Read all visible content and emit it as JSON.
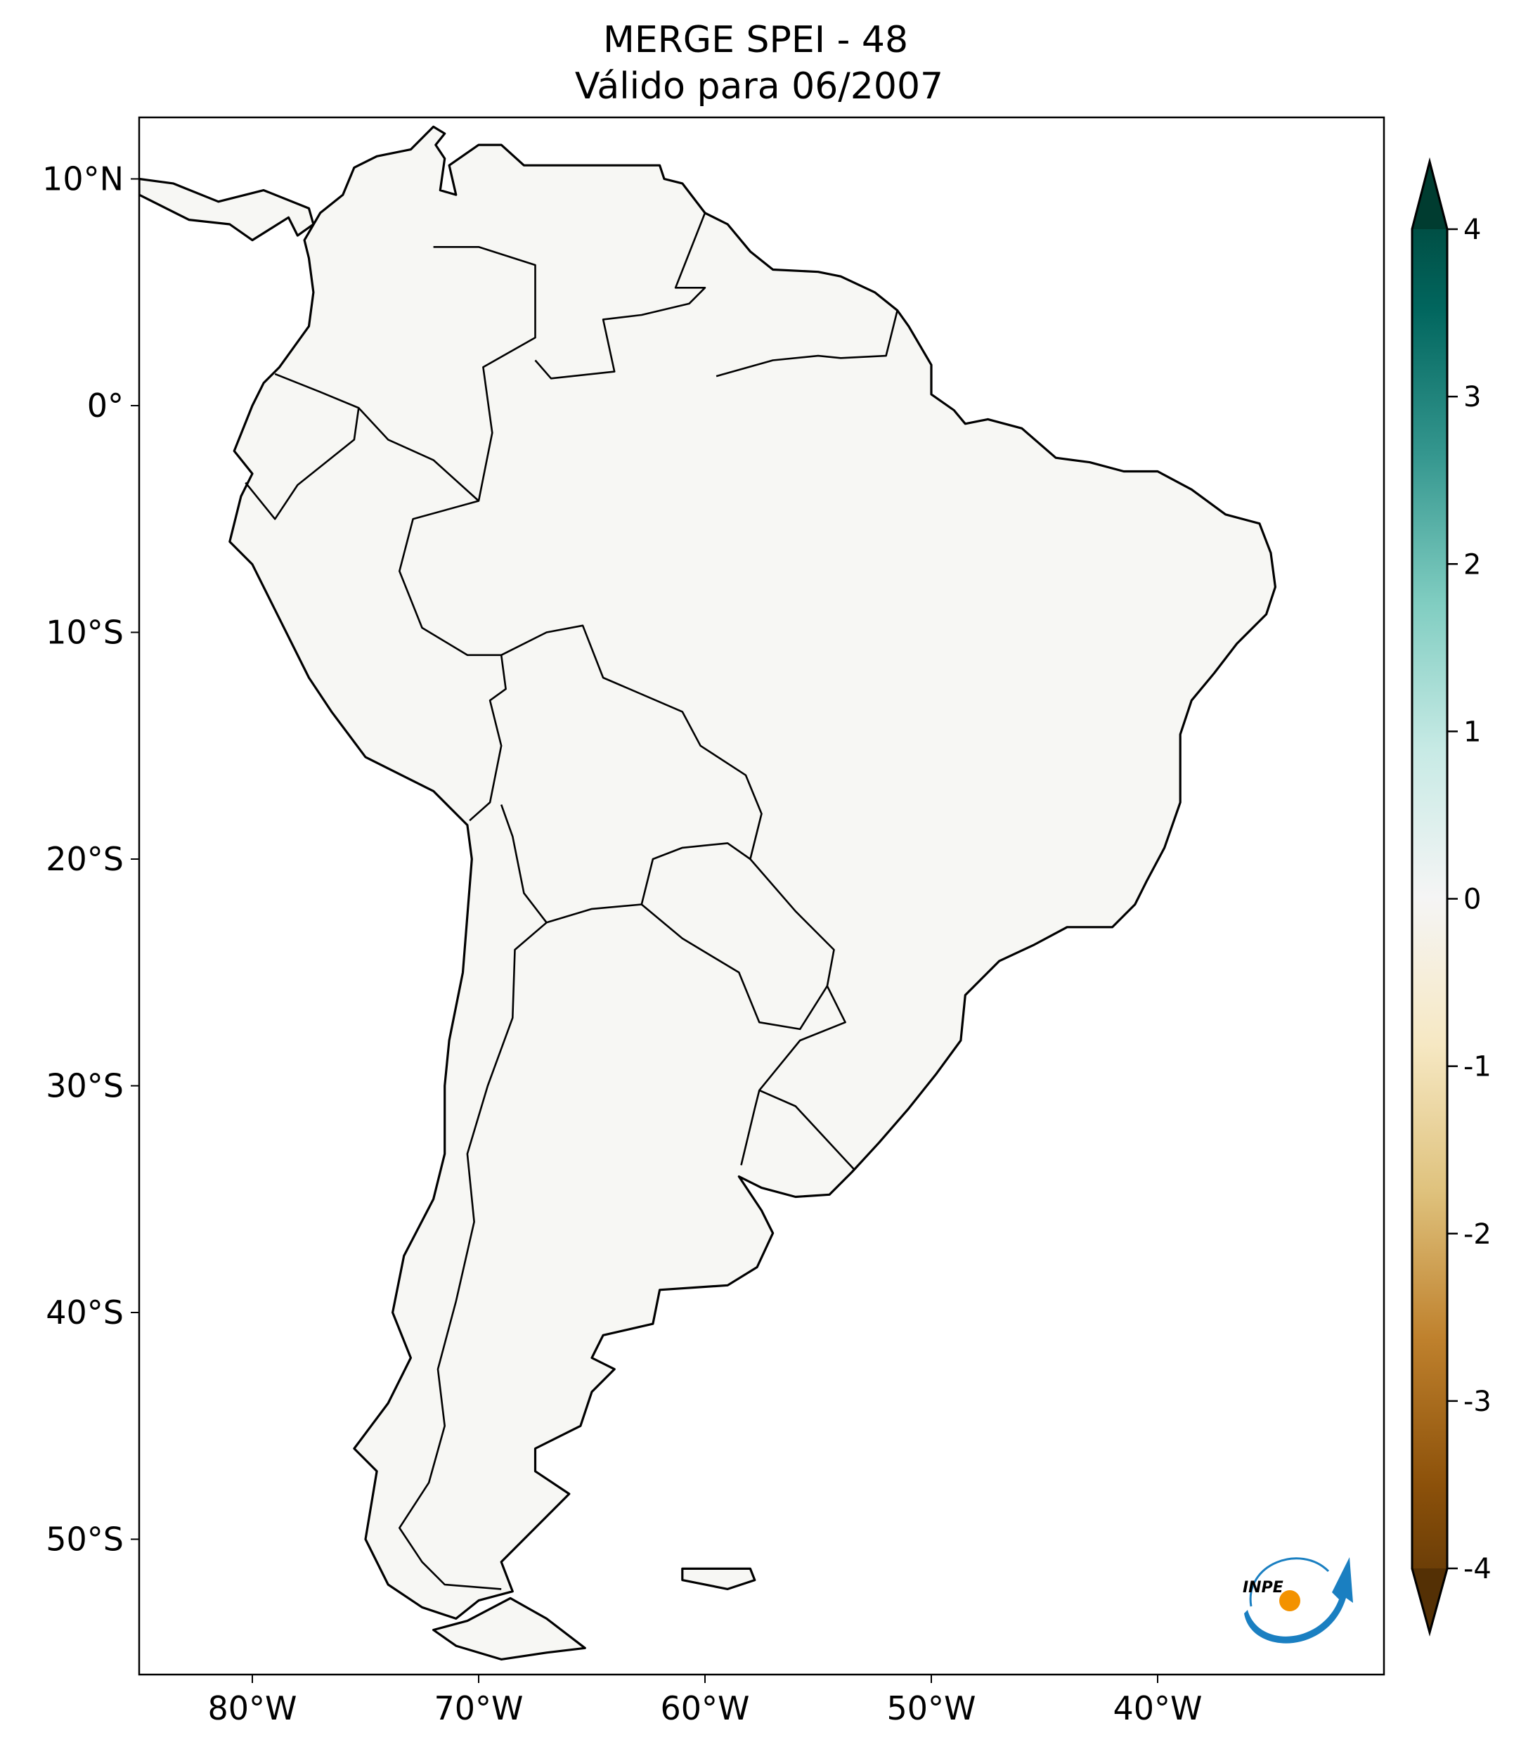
{
  "title": {
    "line1": "MERGE   SPEI - 48",
    "line2": "Válido para 06/2007"
  },
  "chart_data": {
    "type": "heatmap",
    "subtype": "geographic map of South America",
    "variable": "SPEI - 48",
    "source": "MERGE",
    "date": "06/2007",
    "lon_ticks": [
      "80°W",
      "70°W",
      "60°W",
      "50°W",
      "40°W"
    ],
    "lat_ticks": [
      "10°N",
      "0°",
      "10°S",
      "20°S",
      "30°S",
      "40°S",
      "50°S"
    ],
    "colorbar": {
      "ticks": [
        "4",
        "3",
        "2",
        "1",
        "0",
        "-1",
        "-2",
        "-3",
        "-4"
      ],
      "range": [
        -4,
        4
      ],
      "extend": "both",
      "colormap": "BrBG",
      "colors": [
        "#543005",
        "#8c510a",
        "#bf812d",
        "#dfc27d",
        "#f6e8c3",
        "#f5f5f5",
        "#c7eae5",
        "#80cdc1",
        "#35978f",
        "#01665e",
        "#003c30"
      ]
    }
  },
  "logo": {
    "text": "INPE"
  }
}
